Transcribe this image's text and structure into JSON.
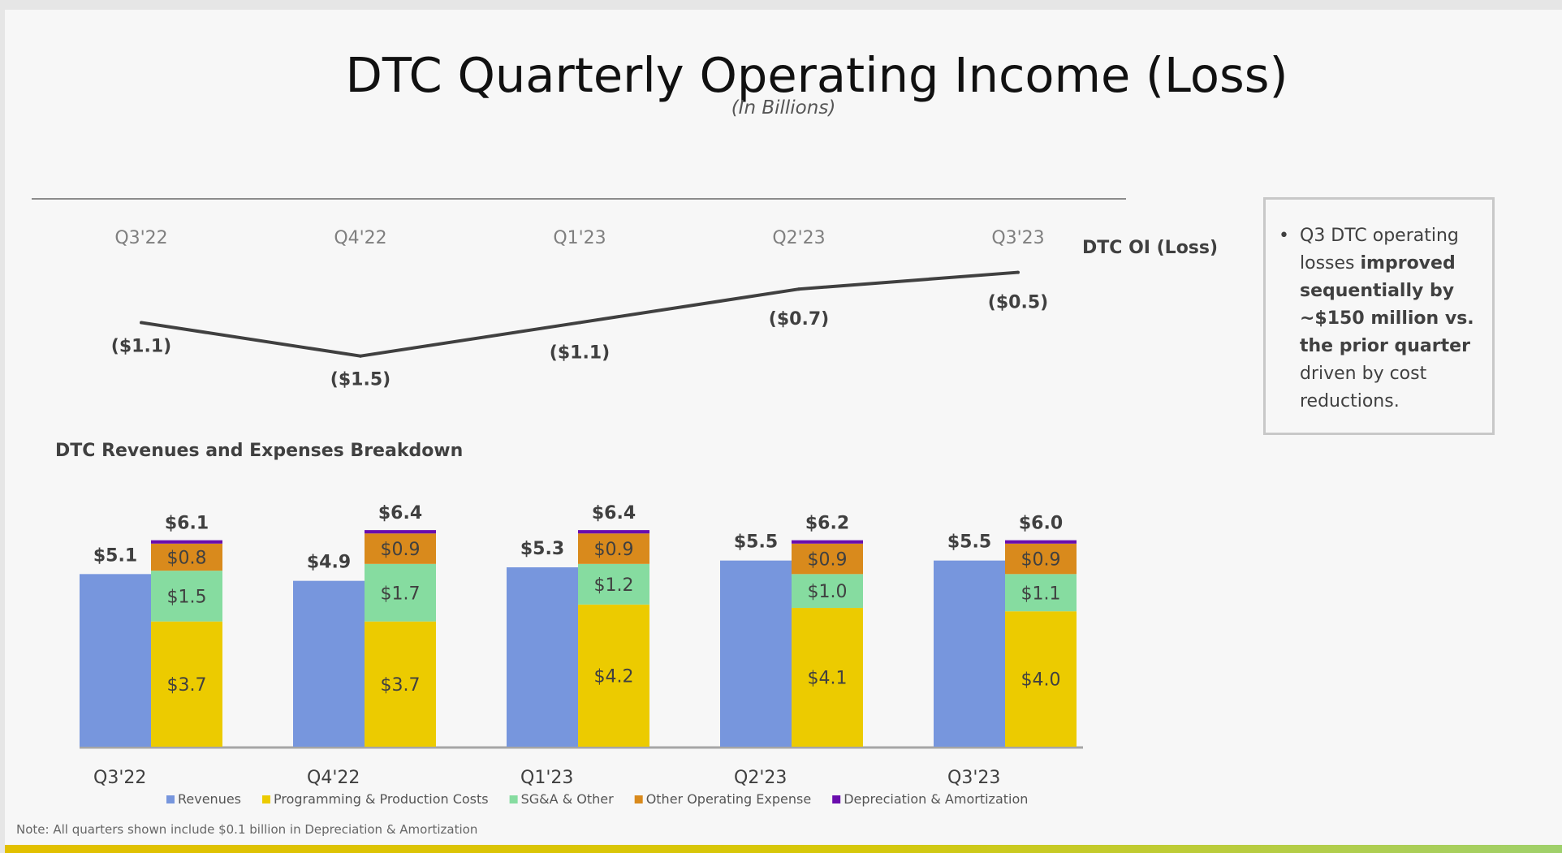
{
  "title": "DTC Quarterly Operating Income (Loss)",
  "subtitle": "(In Billions)",
  "line_series_label": "DTC OI (Loss)",
  "breakdown_title": "DTC Revenues and Expenses Breakdown",
  "note": "Note: All quarters shown include $0.1 billion in Depreciation & Amortization",
  "callout": {
    "bullet": "•",
    "text_before": "Q3 DTC operating losses ",
    "text_bold": "improved sequentially by ~$150 million vs. the prior quarter",
    "text_after": " driven by cost reductions."
  },
  "colors": {
    "revenues": "#7796dd",
    "programming": "#eccb00",
    "sga": "#86dca0",
    "other_opex": "#d98a1c",
    "da": "#6a0dad",
    "line": "#404040"
  },
  "chart_data": [
    {
      "type": "line",
      "title": "DTC OI (Loss)",
      "categories": [
        "Q3'22",
        "Q4'22",
        "Q1'23",
        "Q2'23",
        "Q3'23"
      ],
      "values": [
        -1.1,
        -1.5,
        -1.1,
        -0.7,
        -0.5
      ],
      "data_labels": [
        "($1.1)",
        "($1.5)",
        "($1.1)",
        "($0.7)",
        "($0.5)"
      ],
      "ylim": [
        -1.6,
        0
      ]
    },
    {
      "type": "bar",
      "title": "DTC Revenues and Expenses Breakdown",
      "categories": [
        "Q3'22",
        "Q4'22",
        "Q1'23",
        "Q2'23",
        "Q3'23"
      ],
      "revenues": {
        "name": "Revenues",
        "values": [
          5.1,
          4.9,
          5.3,
          5.5,
          5.5
        ],
        "labels": [
          "$5.1",
          "$4.9",
          "$5.3",
          "$5.5",
          "$5.5"
        ]
      },
      "expense_totals": {
        "values": [
          6.1,
          6.4,
          6.4,
          6.2,
          6.0
        ],
        "labels": [
          "$6.1",
          "$6.4",
          "$6.4",
          "$6.2",
          "$6.0"
        ]
      },
      "expense_series": [
        {
          "name": "Programming & Production Costs",
          "key": "programming",
          "values": [
            3.7,
            3.7,
            4.2,
            4.1,
            4.0
          ],
          "labels": [
            "$3.7",
            "$3.7",
            "$4.2",
            "$4.1",
            "$4.0"
          ]
        },
        {
          "name": "SG&A & Other",
          "key": "sga",
          "values": [
            1.5,
            1.7,
            1.2,
            1.0,
            1.1
          ],
          "labels": [
            "$1.5",
            "$1.7",
            "$1.2",
            "$1.0",
            "$1.1"
          ]
        },
        {
          "name": "Other Operating Expense",
          "key": "other_opex",
          "values": [
            0.8,
            0.9,
            0.9,
            0.9,
            0.9
          ],
          "labels": [
            "$0.8",
            "$0.9",
            "$0.9",
            "$0.9",
            "$0.9"
          ]
        },
        {
          "name": "Depreciation & Amortization",
          "key": "da",
          "values": [
            0.1,
            0.1,
            0.1,
            0.1,
            0.1
          ],
          "labels": []
        }
      ],
      "legend": [
        {
          "name": "Revenues",
          "key": "revenues"
        },
        {
          "name": "Programming & Production Costs",
          "key": "programming"
        },
        {
          "name": "SG&A & Other",
          "key": "sga"
        },
        {
          "name": "Other Operating Expense",
          "key": "other_opex"
        },
        {
          "name": "Depreciation & Amortization",
          "key": "da"
        }
      ],
      "legend_position": "bottom",
      "ylim": [
        0,
        7
      ]
    }
  ]
}
